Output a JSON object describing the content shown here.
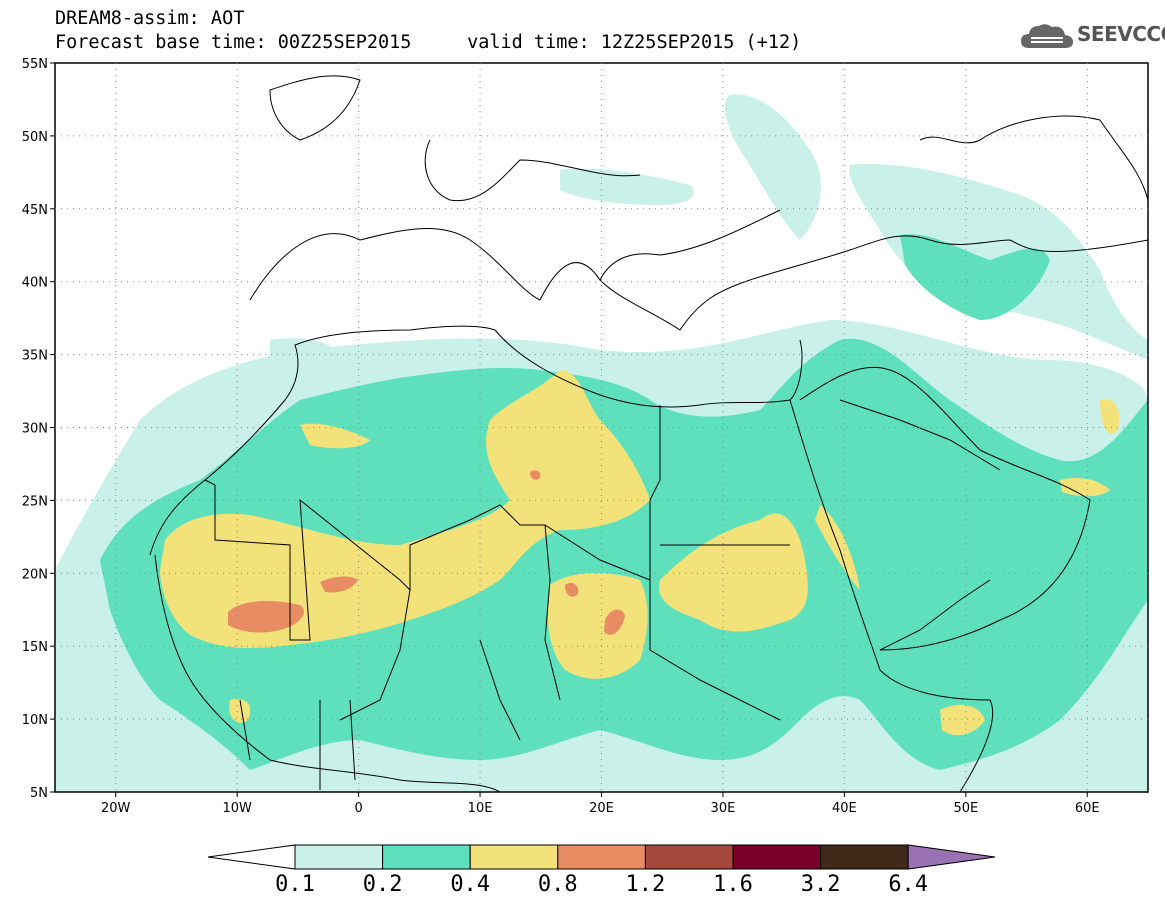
{
  "header": {
    "title_line1": "DREAM8-assim: AOT",
    "title_line2": "Forecast base time: 00Z25SEP2015     valid time: 12Z25SEP2015 (+12)"
  },
  "logo": {
    "text": "SEEVCCC",
    "icon": "cloud-icon"
  },
  "map": {
    "lon_range": [
      -25,
      65
    ],
    "lat_range": [
      5,
      55
    ],
    "lat_ticks": [
      {
        "lat": 55,
        "label": "55N"
      },
      {
        "lat": 50,
        "label": "50N"
      },
      {
        "lat": 45,
        "label": "45N"
      },
      {
        "lat": 40,
        "label": "40N"
      },
      {
        "lat": 35,
        "label": "35N"
      },
      {
        "lat": 30,
        "label": "30N"
      },
      {
        "lat": 25,
        "label": "25N"
      },
      {
        "lat": 20,
        "label": "20N"
      },
      {
        "lat": 15,
        "label": "15N"
      },
      {
        "lat": 10,
        "label": "10N"
      },
      {
        "lat": 5,
        "label": "5N"
      }
    ],
    "lon_ticks": [
      {
        "lon": -20,
        "label": "20W"
      },
      {
        "lon": -10,
        "label": "10W"
      },
      {
        "lon": 0,
        "label": "0"
      },
      {
        "lon": 10,
        "label": "10E"
      },
      {
        "lon": 20,
        "label": "20E"
      },
      {
        "lon": 30,
        "label": "30E"
      },
      {
        "lon": 40,
        "label": "40E"
      },
      {
        "lon": 50,
        "label": "50E"
      },
      {
        "lon": 60,
        "label": "60E"
      }
    ]
  },
  "colorbar": {
    "levels": [
      "0.1",
      "0.2",
      "0.4",
      "0.8",
      "1.2",
      "1.6",
      "3.2",
      "6.4"
    ],
    "colors": [
      "#ffffff",
      "#c9f1ea",
      "#5ee0bd",
      "#f3e27a",
      "#e88c64",
      "#a5483b",
      "#780029",
      "#3f2817",
      "#9a71b3"
    ]
  }
}
